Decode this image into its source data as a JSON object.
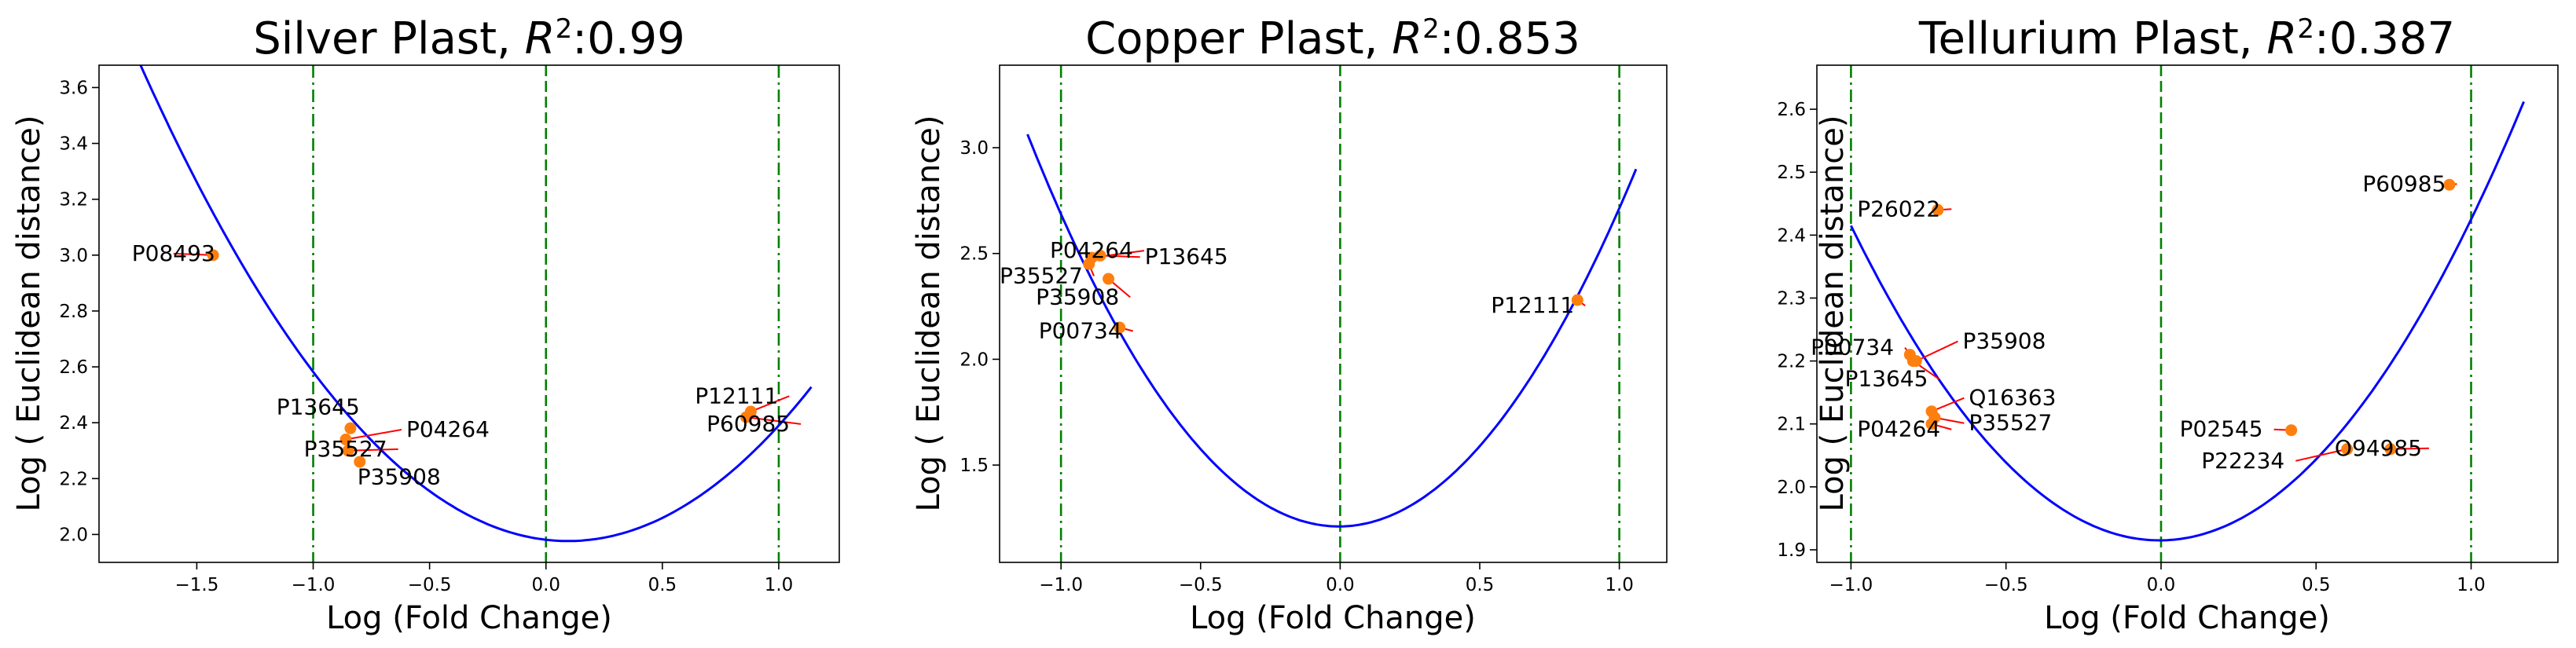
{
  "chart_data": [
    {
      "type": "scatter",
      "title_prefix": "Silver Plast, ",
      "r2_symbol": "R",
      "r2_exp": "2",
      "r2_value": ":0.99",
      "xlabel": "Log (Fold Change)",
      "ylabel": "Log ( Euclidean distance)",
      "xlim": [
        -1.92,
        1.26
      ],
      "ylim": [
        1.9,
        3.68
      ],
      "xticks": [
        -1.5,
        -1.0,
        -0.5,
        0.0,
        0.5,
        1.0
      ],
      "xtick_labels": [
        "−1.5",
        "−1.0",
        "−0.5",
        "0.0",
        "0.5",
        "1.0"
      ],
      "yticks": [
        2.0,
        2.2,
        2.4,
        2.6,
        2.8,
        3.0,
        3.2,
        3.4,
        3.6
      ],
      "ytick_labels": [
        "2.0",
        "2.2",
        "2.4",
        "2.6",
        "2.8",
        "3.0",
        "3.2",
        "3.4",
        "3.6"
      ],
      "curve": {
        "a": 0.505,
        "b": -0.096,
        "c": 1.981,
        "xmin": -1.76,
        "xmax": 1.14,
        "color": "#0000ff"
      },
      "vlines": [
        {
          "x": -1.0,
          "style": "dashdot"
        },
        {
          "x": 0.0,
          "style": "dashed"
        },
        {
          "x": 1.0,
          "style": "dashdot"
        }
      ],
      "points": [
        {
          "label": "P08493",
          "x": -1.43,
          "y": 3.0,
          "lx": -1.6,
          "ly": 2.98,
          "anchor": "middle"
        },
        {
          "label": "P13645",
          "x": -0.84,
          "y": 2.38,
          "lx": -0.8,
          "ly": 2.43,
          "anchor": "end"
        },
        {
          "label": "P04264",
          "x": -0.86,
          "y": 2.34,
          "lx": -0.6,
          "ly": 2.35,
          "anchor": "start"
        },
        {
          "label": "P35527",
          "x": -0.85,
          "y": 2.3,
          "lx": -1.04,
          "ly": 2.28,
          "anchor": "start"
        },
        {
          "label": "P35908",
          "x": -0.8,
          "y": 2.26,
          "lx": -0.81,
          "ly": 2.18,
          "anchor": "start"
        },
        {
          "label": "P12111",
          "x": 0.88,
          "y": 2.44,
          "lx": 0.64,
          "ly": 2.47,
          "anchor": "start"
        },
        {
          "label": "P60985",
          "x": 0.86,
          "y": 2.42,
          "lx": 0.69,
          "ly": 2.37,
          "anchor": "start"
        }
      ]
    },
    {
      "type": "scatter",
      "title_prefix": "Copper Plast, ",
      "r2_symbol": "R",
      "r2_exp": "2",
      "r2_value": ":0.853",
      "xlabel": "Log (Fold Change)",
      "ylabel": "Log ( Euclidean distance)",
      "xlim": [
        -1.22,
        1.17
      ],
      "ylim": [
        1.04,
        3.39
      ],
      "xticks": [
        -1.0,
        -0.5,
        0.0,
        0.5,
        1.0
      ],
      "xtick_labels": [
        "−1.0",
        "−0.5",
        "0.0",
        "0.5",
        "1.0"
      ],
      "yticks": [
        1.5,
        2.0,
        2.5,
        3.0
      ],
      "ytick_labels": [
        "1.5",
        "2.0",
        "2.5",
        "3.0"
      ],
      "curve": {
        "a": 1.49,
        "b": 0.014,
        "c": 1.21,
        "xmin": -1.12,
        "xmax": 1.06,
        "color": "#0000ff"
      },
      "vlines": [
        {
          "x": -1.0,
          "style": "dashdot"
        },
        {
          "x": 0.0,
          "style": "dashed"
        },
        {
          "x": 1.0,
          "style": "dashdot"
        }
      ],
      "points": [
        {
          "label": "P04264",
          "x": -0.89,
          "y": 2.48,
          "lx": -1.04,
          "ly": 2.48,
          "anchor": "start"
        },
        {
          "label": "P13645",
          "x": -0.86,
          "y": 2.49,
          "lx": -0.7,
          "ly": 2.45,
          "anchor": "start"
        },
        {
          "label": "P35527",
          "x": -0.9,
          "y": 2.45,
          "lx": -1.22,
          "ly": 2.36,
          "anchor": "start"
        },
        {
          "label": "P35908",
          "x": -0.83,
          "y": 2.38,
          "lx": -1.09,
          "ly": 2.26,
          "anchor": "start"
        },
        {
          "label": "P00734",
          "x": -0.79,
          "y": 2.15,
          "lx": -1.08,
          "ly": 2.1,
          "anchor": "start"
        },
        {
          "label": "P12111",
          "x": 0.85,
          "y": 2.28,
          "lx": 0.54,
          "ly": 2.22,
          "anchor": "start"
        }
      ]
    },
    {
      "type": "scatter",
      "title_prefix": "Tellurium Plast, ",
      "r2_symbol": "R",
      "r2_exp": "2",
      "r2_value": ":0.387",
      "xlabel": "Log (Fold Change)",
      "ylabel": "Log ( Euclidean distance)",
      "xlim": [
        -1.11,
        1.28
      ],
      "ylim": [
        1.88,
        2.67
      ],
      "xticks": [
        -1.0,
        -0.5,
        0.0,
        0.5,
        1.0
      ],
      "xtick_labels": [
        "−1.0",
        "−0.5",
        "0.0",
        "0.5",
        "1.0"
      ],
      "yticks": [
        1.9,
        2.0,
        2.1,
        2.2,
        2.3,
        2.4,
        2.5,
        2.6
      ],
      "ytick_labels": [
        "1.9",
        "2.0",
        "2.1",
        "2.2",
        "2.3",
        "2.4",
        "2.5",
        "2.6"
      ],
      "curve": {
        "a": 0.505,
        "b": 0.005,
        "c": 1.915,
        "xmin": -1.0,
        "xmax": 1.17,
        "color": "#0000ff"
      },
      "vlines": [
        {
          "x": -1.0,
          "style": "dashdot"
        },
        {
          "x": 0.0,
          "style": "dashed"
        },
        {
          "x": 1.0,
          "style": "dashdot"
        }
      ],
      "points": [
        {
          "label": "P26022",
          "x": -0.72,
          "y": 2.44,
          "lx": -0.98,
          "ly": 2.43,
          "anchor": "start"
        },
        {
          "label": "P60985",
          "x": 0.93,
          "y": 2.48,
          "lx": 0.65,
          "ly": 2.47,
          "anchor": "start"
        },
        {
          "label": "P00734",
          "x": -0.81,
          "y": 2.21,
          "lx": -1.13,
          "ly": 2.21,
          "anchor": "start"
        },
        {
          "label": "P35908",
          "x": -0.79,
          "y": 2.2,
          "lx": -0.64,
          "ly": 2.22,
          "anchor": "start"
        },
        {
          "label": "P13645",
          "x": -0.8,
          "y": 2.2,
          "lx": -1.02,
          "ly": 2.16,
          "anchor": "start"
        },
        {
          "label": "Q16363",
          "x": -0.74,
          "y": 2.12,
          "lx": -0.62,
          "ly": 2.13,
          "anchor": "start"
        },
        {
          "label": "P04264",
          "x": -0.74,
          "y": 2.1,
          "lx": -0.98,
          "ly": 2.08,
          "anchor": "start"
        },
        {
          "label": "P35527",
          "x": -0.73,
          "y": 2.11,
          "lx": -0.62,
          "ly": 2.09,
          "anchor": "start"
        },
        {
          "label": "P02545",
          "x": 0.42,
          "y": 2.09,
          "lx": 0.06,
          "ly": 2.08,
          "anchor": "start"
        },
        {
          "label": "P22234",
          "x": 0.6,
          "y": 2.06,
          "lx": 0.13,
          "ly": 2.03,
          "anchor": "start"
        },
        {
          "label": "O94985",
          "x": 0.74,
          "y": 2.06,
          "lx": 0.56,
          "ly": 2.05,
          "anchor": "start"
        }
      ]
    }
  ]
}
